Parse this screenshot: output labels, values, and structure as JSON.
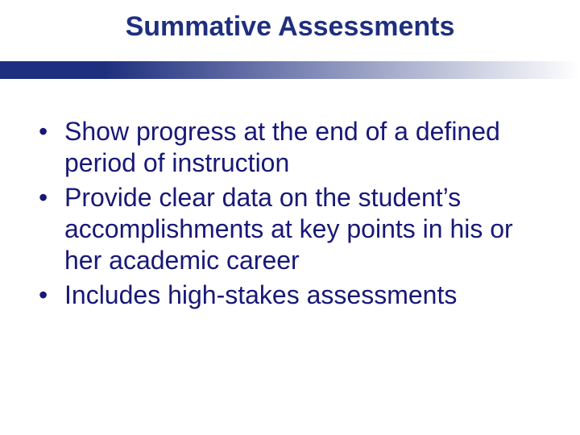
{
  "slide": {
    "title": "Summative Assessments",
    "title_color": "#1f2f7f",
    "title_fontsize": 34,
    "title_font_family": "Arial, Helvetica, sans-serif",
    "divider": {
      "start_color": "#1f2f7f",
      "end_color": "#ffffff",
      "height": 22
    },
    "bullets": [
      "Show progress at the end of a defined period of instruction",
      "Provide clear data on the student’s accomplishments at key points in his or her academic career",
      "Includes high-stakes assessments"
    ],
    "bullet_color": "#181878",
    "bullet_marker_color": "#181878",
    "bullet_fontsize": 32,
    "bullet_line_height": 1.22,
    "background_color": "#ffffff"
  }
}
